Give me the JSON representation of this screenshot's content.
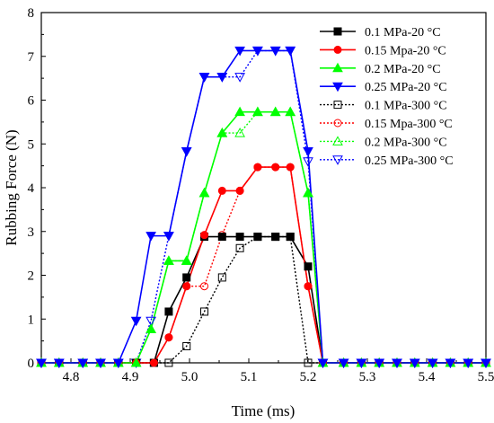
{
  "chart_data": {
    "type": "line",
    "title": "",
    "xlabel": "Time (ms)",
    "ylabel": "Rubbing Force (N)",
    "xlim": [
      4.75,
      5.5
    ],
    "ylim": [
      0,
      8
    ],
    "xticks": [
      4.8,
      4.9,
      5.0,
      5.1,
      5.2,
      5.3,
      5.4,
      5.5
    ],
    "yticks": [
      0,
      1,
      2,
      3,
      4,
      5,
      6,
      7,
      8
    ],
    "grid": false,
    "legend_position": "top-right",
    "series": [
      {
        "name": "0.1 MPa-20 °C",
        "color": "#000000",
        "marker": "square",
        "filled": true,
        "line": "solid",
        "x": [
          4.75,
          4.78,
          4.82,
          4.85,
          4.88,
          4.91,
          4.94,
          4.965,
          4.995,
          5.025,
          5.055,
          5.085,
          5.115,
          5.145,
          5.17,
          5.2,
          5.225,
          5.26,
          5.29,
          5.32,
          5.35,
          5.38,
          5.41,
          5.44,
          5.47,
          5.5
        ],
        "y": [
          0,
          0,
          0,
          0,
          0,
          0,
          0,
          1.17,
          1.95,
          2.88,
          2.88,
          2.88,
          2.88,
          2.88,
          2.88,
          2.2,
          0,
          0,
          0,
          0,
          0,
          0,
          0,
          0,
          0,
          0
        ]
      },
      {
        "name": "0.15 Mpa-20 °C",
        "color": "#ff0000",
        "marker": "circle",
        "filled": true,
        "line": "solid",
        "x": [
          4.75,
          4.78,
          4.82,
          4.85,
          4.88,
          4.91,
          4.94,
          4.965,
          4.995,
          5.025,
          5.055,
          5.085,
          5.115,
          5.145,
          5.17,
          5.2,
          5.225,
          5.26,
          5.29,
          5.32,
          5.35,
          5.38,
          5.41,
          5.44,
          5.47,
          5.5
        ],
        "y": [
          0,
          0,
          0,
          0,
          0,
          0,
          0,
          0.58,
          1.75,
          2.92,
          3.93,
          3.93,
          4.47,
          4.47,
          4.47,
          1.75,
          0,
          0,
          0,
          0,
          0,
          0,
          0,
          0,
          0,
          0
        ]
      },
      {
        "name": "0.2 MPa-20 °C",
        "color": "#00ff00",
        "marker": "triangle-up",
        "filled": true,
        "line": "solid",
        "x": [
          4.75,
          4.78,
          4.82,
          4.85,
          4.88,
          4.91,
          4.935,
          4.965,
          4.995,
          5.025,
          5.055,
          5.085,
          5.115,
          5.145,
          5.17,
          5.2,
          5.225,
          5.26,
          5.29,
          5.32,
          5.35,
          5.38,
          5.41,
          5.44,
          5.47,
          5.5
        ],
        "y": [
          0,
          0,
          0,
          0,
          0,
          0,
          0.77,
          2.33,
          2.33,
          3.88,
          5.25,
          5.73,
          5.73,
          5.73,
          5.73,
          3.88,
          0,
          0,
          0,
          0,
          0,
          0,
          0,
          0,
          0,
          0
        ]
      },
      {
        "name": "0.25 MPa-20 °C",
        "color": "#0000ff",
        "marker": "triangle-down",
        "filled": true,
        "line": "solid",
        "x": [
          4.75,
          4.78,
          4.82,
          4.85,
          4.88,
          4.91,
          4.935,
          4.965,
          4.995,
          5.025,
          5.055,
          5.085,
          5.115,
          5.145,
          5.17,
          5.2,
          5.225,
          5.26,
          5.29,
          5.32,
          5.35,
          5.38,
          5.41,
          5.44,
          5.47,
          5.5
        ],
        "y": [
          0,
          0,
          0,
          0,
          0,
          0.96,
          2.9,
          2.9,
          4.83,
          6.53,
          6.53,
          7.13,
          7.13,
          7.13,
          7.13,
          4.83,
          0,
          0,
          0,
          0,
          0,
          0,
          0,
          0,
          0,
          0
        ]
      },
      {
        "name": "0.1 MPa-300 °C",
        "color": "#000000",
        "marker": "square",
        "filled": false,
        "line": "dotted",
        "x": [
          4.75,
          4.78,
          4.82,
          4.85,
          4.88,
          4.91,
          4.94,
          4.965,
          4.995,
          5.025,
          5.055,
          5.085,
          5.115,
          5.145,
          5.17,
          5.2,
          5.225,
          5.26,
          5.29,
          5.32,
          5.35,
          5.38,
          5.41,
          5.44,
          5.47,
          5.5
        ],
        "y": [
          0,
          0,
          0,
          0,
          0,
          0,
          0,
          0,
          0.38,
          1.17,
          1.95,
          2.62,
          2.88,
          2.88,
          2.88,
          0,
          0,
          0,
          0,
          0,
          0,
          0,
          0,
          0,
          0,
          0
        ]
      },
      {
        "name": "0.15 Mpa-300 °C",
        "color": "#ff0000",
        "marker": "circle",
        "filled": false,
        "line": "dotted",
        "x": [
          4.75,
          4.78,
          4.82,
          4.85,
          4.88,
          4.91,
          4.94,
          4.965,
          4.995,
          5.025,
          5.055,
          5.085,
          5.115,
          5.145,
          5.17,
          5.2,
          5.225,
          5.26,
          5.29,
          5.32,
          5.35,
          5.38,
          5.41,
          5.44,
          5.47,
          5.5
        ],
        "y": [
          0,
          0,
          0,
          0,
          0,
          0,
          0,
          0.58,
          1.75,
          1.75,
          2.92,
          3.93,
          4.47,
          4.47,
          4.47,
          1.75,
          0,
          0,
          0,
          0,
          0,
          0,
          0,
          0,
          0,
          0
        ]
      },
      {
        "name": "0.2 MPa-300 °C",
        "color": "#00ff00",
        "marker": "triangle-up",
        "filled": false,
        "line": "dotted",
        "x": [
          4.75,
          4.78,
          4.82,
          4.85,
          4.88,
          4.91,
          4.935,
          4.965,
          4.995,
          5.025,
          5.055,
          5.085,
          5.115,
          5.145,
          5.17,
          5.2,
          5.225,
          5.26,
          5.29,
          5.32,
          5.35,
          5.38,
          5.41,
          5.44,
          5.47,
          5.5
        ],
        "y": [
          0,
          0,
          0,
          0,
          0,
          0,
          0.77,
          2.33,
          2.33,
          3.88,
          5.25,
          5.25,
          5.73,
          5.73,
          5.73,
          3.88,
          0,
          0,
          0,
          0,
          0,
          0,
          0,
          0,
          0,
          0
        ]
      },
      {
        "name": "0.25 MPa-300 °C",
        "color": "#0000ff",
        "marker": "triangle-down",
        "filled": false,
        "line": "dotted",
        "x": [
          4.75,
          4.78,
          4.82,
          4.85,
          4.88,
          4.91,
          4.935,
          4.965,
          4.995,
          5.025,
          5.055,
          5.085,
          5.115,
          5.145,
          5.17,
          5.2,
          5.225,
          5.26,
          5.29,
          5.32,
          5.35,
          5.38,
          5.41,
          5.44,
          5.47,
          5.5
        ],
        "y": [
          0,
          0,
          0,
          0,
          0,
          0,
          0.96,
          2.9,
          4.83,
          6.53,
          6.53,
          6.53,
          7.13,
          7.13,
          7.13,
          4.6,
          0,
          0,
          0,
          0,
          0,
          0,
          0,
          0,
          0,
          0
        ]
      }
    ]
  }
}
